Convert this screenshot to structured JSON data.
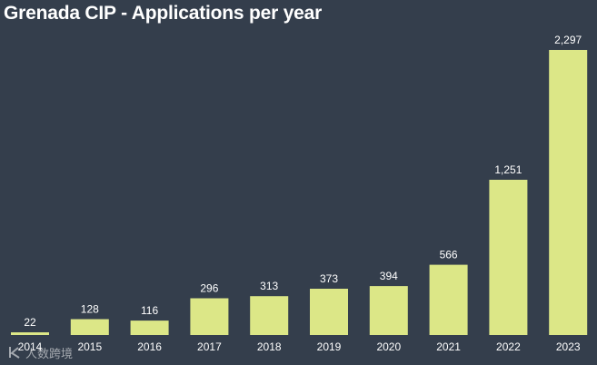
{
  "colors": {
    "background": "#343e4c",
    "bar": "#dce787",
    "text": "#ffffff"
  },
  "watermark": {
    "text": "人数跨境",
    "icon": "k-logo-icon"
  },
  "chart_data": {
    "type": "bar",
    "title": "Grenada CIP - Applications per year",
    "xlabel": "",
    "ylabel": "",
    "categories": [
      "2014",
      "2015",
      "2016",
      "2017",
      "2018",
      "2019",
      "2020",
      "2021",
      "2022",
      "2023"
    ],
    "values": [
      22,
      128,
      116,
      296,
      313,
      373,
      394,
      566,
      1251,
      2297
    ],
    "value_labels": [
      "22",
      "128",
      "116",
      "296",
      "313",
      "373",
      "394",
      "566",
      "1,251",
      "2,297"
    ],
    "ylim": [
      0,
      2297
    ],
    "grid": false,
    "legend": "none"
  }
}
